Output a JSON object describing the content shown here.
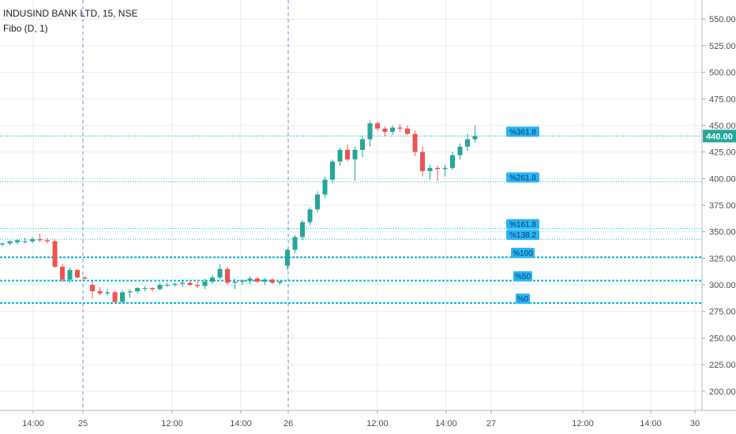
{
  "symbol_line": "INDUSIND BANK LTD, 15, NSE",
  "indicator_line": "Fibo (D, 1)",
  "colors": {
    "up": "#26a69a",
    "down": "#ef5350",
    "fib_line": "#00bcd4",
    "fib_label_bg": "#29b6f6",
    "grid": "#e6eef5",
    "session_divider": "#6c8cd5",
    "price_tag_bg": "#26a69a"
  },
  "current_price_label": "440.00",
  "chart_data": {
    "type": "candlestick",
    "ylim": [
      182,
      568
    ],
    "y_ticks": [
      "200.00",
      "225.00",
      "250.00",
      "275.00",
      "300.00",
      "325.00",
      "350.00",
      "375.00",
      "400.00",
      "425.00",
      "450.00",
      "475.00",
      "500.00",
      "525.00",
      "550.00"
    ],
    "x_ticks": [
      "14:00",
      "25",
      "12:00",
      "14:00",
      "26",
      "12:00",
      "14:00",
      "27",
      "12:00",
      "14:00",
      "30"
    ],
    "session_dividers_at": [
      "25",
      "26"
    ],
    "current_price": 440,
    "fib_levels": [
      {
        "label": "%361.8",
        "price": 440
      },
      {
        "label": "%261.8",
        "price": 397
      },
      {
        "label": "%161.8",
        "price": 353
      },
      {
        "label": "%138.2",
        "price": 343
      },
      {
        "label": "%100",
        "price": 326
      },
      {
        "label": "%50",
        "price": 304
      },
      {
        "label": "%0",
        "price": 283
      }
    ],
    "candles": [
      [
        338,
        340,
        336,
        339
      ],
      [
        339,
        342,
        337,
        341
      ],
      [
        340,
        343,
        338,
        342
      ],
      [
        341,
        344,
        339,
        341
      ],
      [
        341,
        345,
        339,
        343
      ],
      [
        343,
        348,
        340,
        342
      ],
      [
        342,
        344,
        339,
        341
      ],
      [
        341,
        343,
        316,
        317
      ],
      [
        317,
        320,
        303,
        305
      ],
      [
        305,
        316,
        302,
        314
      ],
      [
        314,
        315,
        306,
        307
      ],
      [
        307,
        308,
        305,
        306
      ],
      [
        300,
        303,
        287,
        294
      ],
      [
        294,
        298,
        290,
        292
      ],
      [
        292,
        296,
        290,
        293
      ],
      [
        293,
        295,
        283,
        284
      ],
      [
        284,
        295,
        283,
        293
      ],
      [
        293,
        296,
        288,
        294
      ],
      [
        294,
        298,
        292,
        297
      ],
      [
        297,
        299,
        294,
        297
      ],
      [
        297,
        298,
        294,
        296
      ],
      [
        296,
        302,
        295,
        300
      ],
      [
        300,
        302,
        298,
        300
      ],
      [
        300,
        302,
        298,
        301
      ],
      [
        301,
        305,
        298,
        302
      ],
      [
        302,
        304,
        299,
        300
      ],
      [
        300,
        303,
        297,
        299
      ],
      [
        299,
        306,
        296,
        303
      ],
      [
        303,
        309,
        301,
        307
      ],
      [
        307,
        320,
        305,
        315
      ],
      [
        315,
        317,
        300,
        302
      ],
      [
        302,
        306,
        296,
        303
      ],
      [
        303,
        305,
        300,
        304
      ],
      [
        304,
        308,
        301,
        306
      ],
      [
        306,
        308,
        302,
        303
      ],
      [
        303,
        307,
        300,
        305
      ],
      [
        305,
        306,
        301,
        302
      ],
      [
        302,
        304,
        300,
        303
      ],
      [
        318,
        334,
        314,
        333
      ],
      [
        333,
        347,
        330,
        345
      ],
      [
        345,
        361,
        342,
        359
      ],
      [
        359,
        373,
        356,
        371
      ],
      [
        371,
        388,
        368,
        385
      ],
      [
        385,
        402,
        382,
        399
      ],
      [
        399,
        418,
        396,
        416
      ],
      [
        416,
        429,
        412,
        427
      ],
      [
        427,
        432,
        416,
        418
      ],
      [
        418,
        430,
        398,
        427
      ],
      [
        427,
        440,
        420,
        437
      ],
      [
        437,
        455,
        430,
        452
      ],
      [
        452,
        454,
        445,
        447
      ],
      [
        447,
        449,
        440,
        444
      ],
      [
        444,
        450,
        441,
        448
      ],
      [
        448,
        451,
        444,
        447
      ],
      [
        447,
        450,
        441,
        442
      ],
      [
        442,
        445,
        421,
        425
      ],
      [
        425,
        430,
        402,
        407
      ],
      [
        407,
        413,
        399,
        410
      ],
      [
        410,
        412,
        398,
        409
      ],
      [
        409,
        413,
        402,
        410
      ],
      [
        410,
        425,
        408,
        422
      ],
      [
        422,
        433,
        418,
        430
      ],
      [
        430,
        442,
        426,
        437
      ],
      [
        437,
        450,
        434,
        440
      ]
    ]
  }
}
